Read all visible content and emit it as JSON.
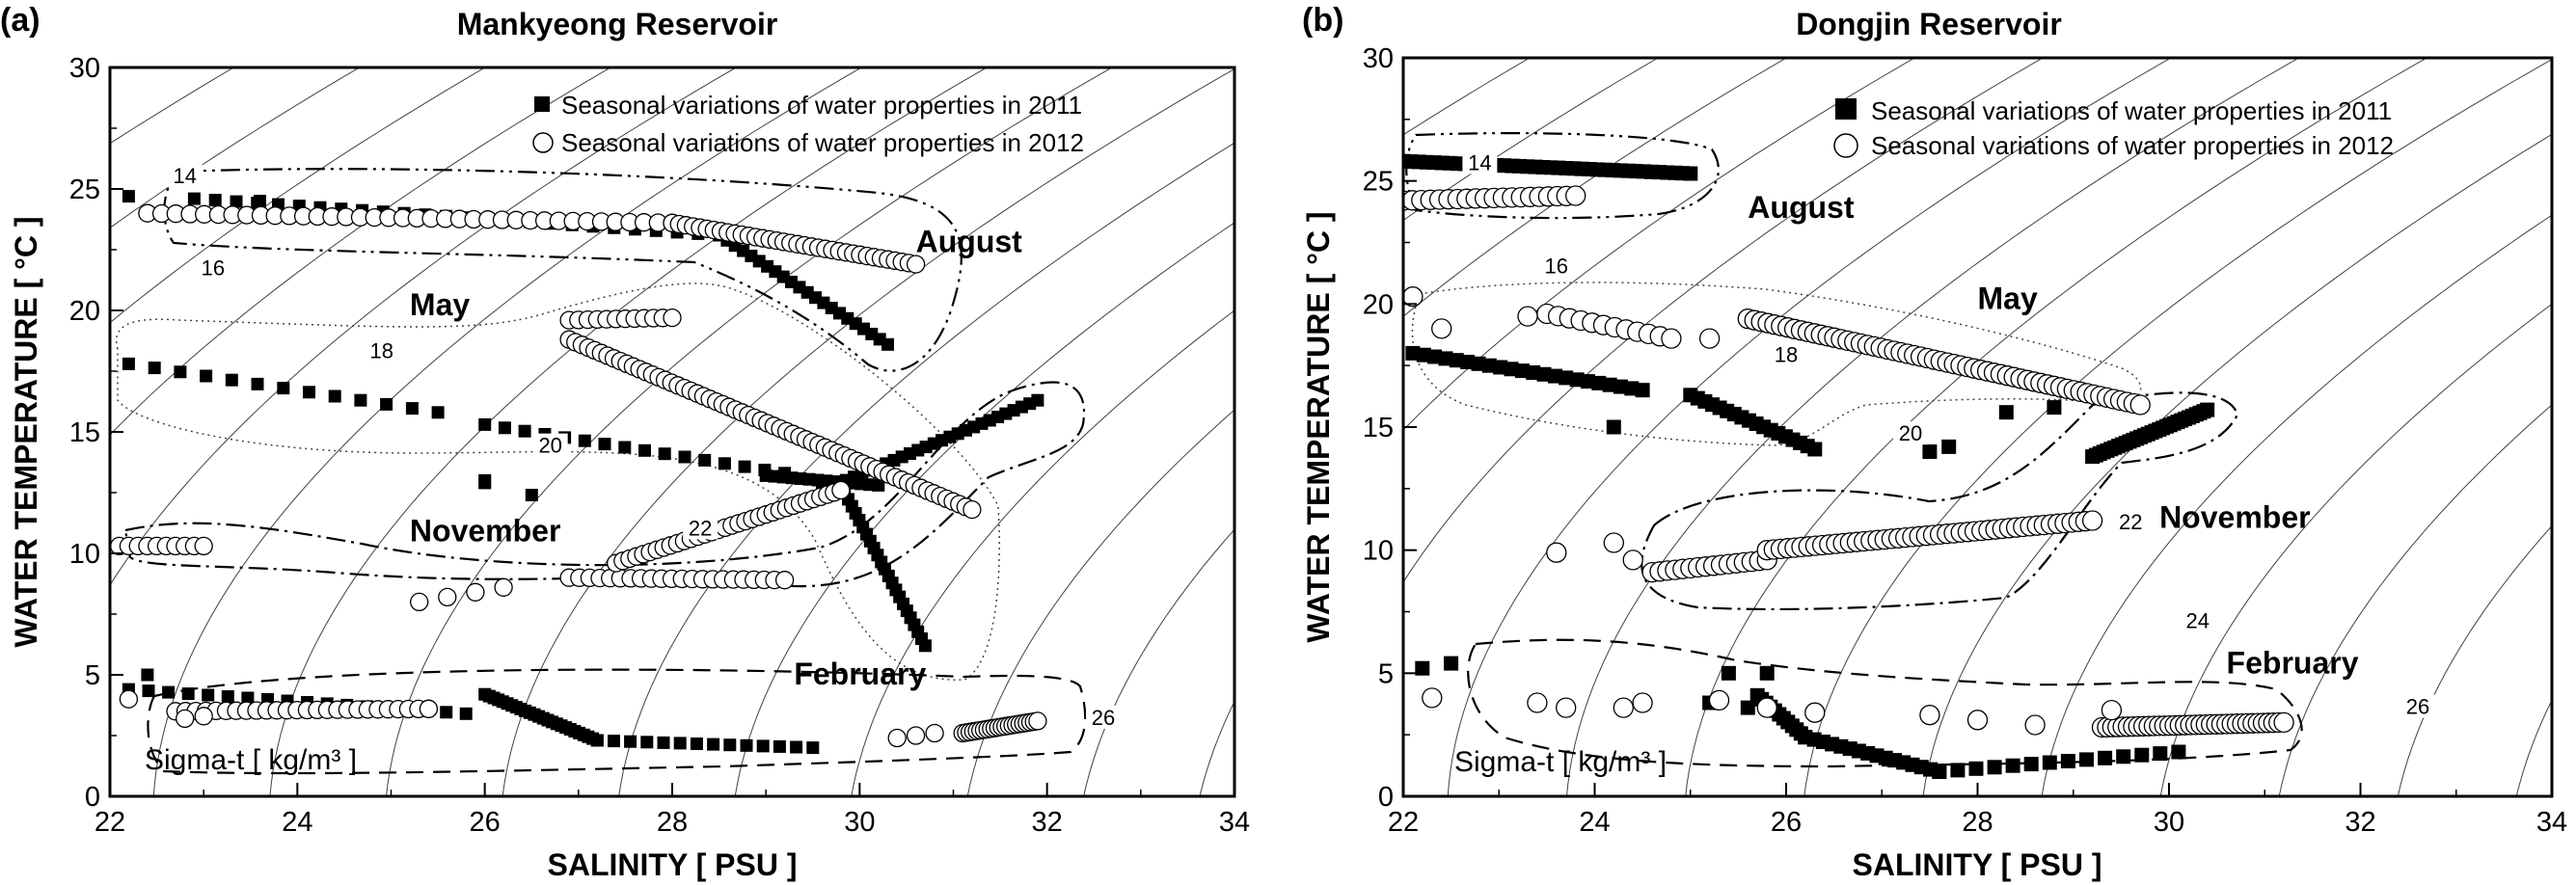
{
  "chart_data": [
    {
      "type": "scatter",
      "panel_label": "(a)",
      "title": "Mankyeong Reservoir",
      "xlabel": "SALINITY [ PSU ]",
      "ylabel": "WATER TEMPERATURE [ °C ]",
      "xlim": [
        22,
        34
      ],
      "ylim": [
        0,
        30
      ],
      "x_ticks": [
        22,
        24,
        26,
        28,
        30,
        32,
        34
      ],
      "y_ticks": [
        0,
        5,
        10,
        15,
        20,
        25,
        30
      ],
      "legend": [
        "Seasonal variations of water properties in 2011",
        "Seasonal variations of water properties in 2012"
      ],
      "sigma_note": "Sigma-t [ kg/m³ ]",
      "sigma_t_labels": [
        {
          "text": "14",
          "s": 22.8,
          "t": 25.4
        },
        {
          "text": "16",
          "s": 23.1,
          "t": 21.6
        },
        {
          "text": "18",
          "s": 24.9,
          "t": 18.2
        },
        {
          "text": "20",
          "s": 26.7,
          "t": 14.3
        },
        {
          "text": "22",
          "s": 28.3,
          "t": 10.9
        },
        {
          "text": "26",
          "s": 32.6,
          "t": 3.1
        }
      ],
      "season_labels": [
        {
          "text": "August",
          "s": 30.6,
          "t": 22.4
        },
        {
          "text": "May",
          "s": 25.2,
          "t": 19.8
        },
        {
          "text": "November",
          "s": 25.2,
          "t": 10.5
        },
        {
          "text": "February",
          "s": 29.3,
          "t": 4.6
        }
      ],
      "series": [
        {
          "name": "2011",
          "marker": "filled-square",
          "segments": [
            {
              "from": [
                22.9,
                24.6
              ],
              "to": [
                28.5,
                23.1
              ],
              "n": 26
            },
            {
              "from": [
                28.5,
                23.1
              ],
              "to": [
                30.3,
                18.6
              ],
              "n": 22
            },
            {
              "from": [
                22.2,
                17.8
              ],
              "to": [
                25.5,
                15.8
              ],
              "n": 13
            },
            {
              "from": [
                26.0,
                15.3
              ],
              "to": [
                29.2,
                13.3
              ],
              "n": 16
            },
            {
              "from": [
                29.0,
                13.2
              ],
              "to": [
                30.2,
                12.8
              ],
              "n": 14
            },
            {
              "from": [
                29.6,
                12.6
              ],
              "to": [
                31.9,
                16.3
              ],
              "n": 28
            },
            {
              "from": [
                29.8,
                12.8
              ],
              "to": [
                30.7,
                6.2
              ],
              "n": 24
            },
            {
              "from": [
                22.2,
                4.4
              ],
              "to": [
                25.8,
                3.4
              ],
              "n": 18
            },
            {
              "from": [
                26.0,
                4.2
              ],
              "to": [
                27.2,
                2.3
              ],
              "n": 26
            },
            {
              "from": [
                27.2,
                2.3
              ],
              "to": [
                29.5,
                2.0
              ],
              "n": 14
            }
          ],
          "points": [
            [
              22.2,
              24.7
            ],
            [
              23.6,
              24.5
            ],
            [
              26.0,
              13.0
            ],
            [
              26.0,
              12.9
            ],
            [
              26.5,
              12.4
            ],
            [
              22.4,
              5.0
            ]
          ]
        },
        {
          "name": "2012",
          "marker": "open-circle",
          "segments": [
            {
              "from": [
                22.4,
                24.0
              ],
              "to": [
                28.0,
                23.6
              ],
              "n": 38
            },
            {
              "from": [
                28.0,
                23.6
              ],
              "to": [
                30.6,
                21.9
              ],
              "n": 36
            },
            {
              "from": [
                26.9,
                19.6
              ],
              "to": [
                28.0,
                19.7
              ],
              "n": 12
            },
            {
              "from": [
                26.9,
                18.8
              ],
              "to": [
                31.2,
                11.8
              ],
              "n": 64
            },
            {
              "from": [
                22.1,
                10.3
              ],
              "to": [
                23.0,
                10.3
              ],
              "n": 10
            },
            {
              "from": [
                25.3,
                8.0
              ],
              "to": [
                26.2,
                8.6
              ],
              "n": 4
            },
            {
              "from": [
                26.9,
                9.0
              ],
              "to": [
                29.2,
                8.9
              ],
              "n": 22
            },
            {
              "from": [
                27.4,
                9.6
              ],
              "to": [
                29.8,
                12.6
              ],
              "n": 34
            },
            {
              "from": [
                22.7,
                3.5
              ],
              "to": [
                25.4,
                3.6
              ],
              "n": 26
            },
            {
              "from": [
                30.4,
                2.4
              ],
              "to": [
                30.8,
                2.6
              ],
              "n": 3
            },
            {
              "from": [
                31.1,
                2.6
              ],
              "to": [
                31.9,
                3.1
              ],
              "n": 22
            }
          ],
          "points": [
            [
              22.2,
              4.0
            ],
            [
              22.8,
              3.2
            ],
            [
              23.0,
              3.3
            ],
            [
              25.4,
              3.6
            ]
          ]
        }
      ]
    },
    {
      "type": "scatter",
      "panel_label": "(b)",
      "title": "Dongjin Reservoir",
      "xlabel": "SALINITY [ PSU ]",
      "ylabel": "WATER TEMPERATURE [ °C ]",
      "xlim": [
        22,
        34
      ],
      "ylim": [
        0,
        30
      ],
      "x_ticks": [
        22,
        24,
        26,
        28,
        30,
        32,
        34
      ],
      "y_ticks": [
        0,
        5,
        10,
        15,
        20,
        25,
        30
      ],
      "legend": [
        "Seasonal variations of water properties in 2011",
        "Seasonal variations of water properties in 2012"
      ],
      "sigma_note": "Sigma-t [ kg/m³ ]",
      "sigma_t_labels": [
        {
          "text": "14",
          "s": 22.8,
          "t": 25.6
        },
        {
          "text": "16",
          "s": 23.6,
          "t": 21.4
        },
        {
          "text": "18",
          "s": 26.0,
          "t": 17.8
        },
        {
          "text": "20",
          "s": 27.3,
          "t": 14.6
        },
        {
          "text": "22",
          "s": 29.6,
          "t": 11.0
        },
        {
          "text": "24",
          "s": 30.3,
          "t": 7.0
        },
        {
          "text": "26",
          "s": 32.6,
          "t": 3.5
        }
      ],
      "season_labels": [
        {
          "text": "August",
          "s": 25.6,
          "t": 23.5
        },
        {
          "text": "May",
          "s": 28.0,
          "t": 19.8
        },
        {
          "text": "November",
          "s": 29.9,
          "t": 10.9
        },
        {
          "text": "February",
          "s": 30.6,
          "t": 5.0
        }
      ],
      "series": [
        {
          "name": "2011",
          "marker": "filled-square",
          "segments": [
            {
              "from": [
                22.0,
                25.8
              ],
              "to": [
                25.0,
                25.3
              ],
              "n": 38
            },
            {
              "from": [
                22.1,
                18.0
              ],
              "to": [
                24.5,
                16.5
              ],
              "n": 22
            },
            {
              "from": [
                25.0,
                16.3
              ],
              "to": [
                26.3,
                14.1
              ],
              "n": 18
            },
            {
              "from": [
                29.2,
                13.8
              ],
              "to": [
                30.4,
                15.7
              ],
              "n": 32
            },
            {
              "from": [
                25.7,
                4.1
              ],
              "to": [
                26.2,
                2.4
              ],
              "n": 12
            },
            {
              "from": [
                26.2,
                2.4
              ],
              "to": [
                27.6,
                1.0
              ],
              "n": 16
            },
            {
              "from": [
                27.6,
                1.0
              ],
              "to": [
                30.1,
                1.8
              ],
              "n": 14
            }
          ],
          "points": [
            [
              22.2,
              5.2
            ],
            [
              22.5,
              5.4
            ],
            [
              24.2,
              15.0
            ],
            [
              27.5,
              14.0
            ],
            [
              27.7,
              14.2
            ],
            [
              28.3,
              15.6
            ],
            [
              28.8,
              15.8
            ],
            [
              25.2,
              3.8
            ],
            [
              25.6,
              3.6
            ],
            [
              25.4,
              5.0
            ],
            [
              25.8,
              5.0
            ]
          ]
        },
        {
          "name": "2012",
          "marker": "open-circle",
          "segments": [
            {
              "from": [
                22.0,
                24.2
              ],
              "to": [
                23.8,
                24.4
              ],
              "n": 20
            },
            {
              "from": [
                23.5,
                19.6
              ],
              "to": [
                24.8,
                18.6
              ],
              "n": 12
            },
            {
              "from": [
                25.6,
                19.4
              ],
              "to": [
                29.7,
                15.9
              ],
              "n": 60
            },
            {
              "from": [
                24.6,
                9.1
              ],
              "to": [
                25.8,
                9.6
              ],
              "n": 16
            },
            {
              "from": [
                25.8,
                10.0
              ],
              "to": [
                29.2,
                11.2
              ],
              "n": 48
            },
            {
              "from": [
                29.3,
                2.8
              ],
              "to": [
                31.2,
                3.0
              ],
              "n": 36
            }
          ],
          "points": [
            [
              22.1,
              20.3
            ],
            [
              22.4,
              19.0
            ],
            [
              23.3,
              19.5
            ],
            [
              25.2,
              18.6
            ],
            [
              24.2,
              10.3
            ],
            [
              24.4,
              9.6
            ],
            [
              23.6,
              9.9
            ],
            [
              22.3,
              4.0
            ],
            [
              23.4,
              3.8
            ],
            [
              23.7,
              3.6
            ],
            [
              24.3,
              3.6
            ],
            [
              24.5,
              3.8
            ],
            [
              25.3,
              3.9
            ],
            [
              25.8,
              3.6
            ],
            [
              26.3,
              3.4
            ],
            [
              27.5,
              3.3
            ],
            [
              28.0,
              3.1
            ],
            [
              28.6,
              2.9
            ],
            [
              29.4,
              3.5
            ]
          ]
        }
      ]
    }
  ]
}
